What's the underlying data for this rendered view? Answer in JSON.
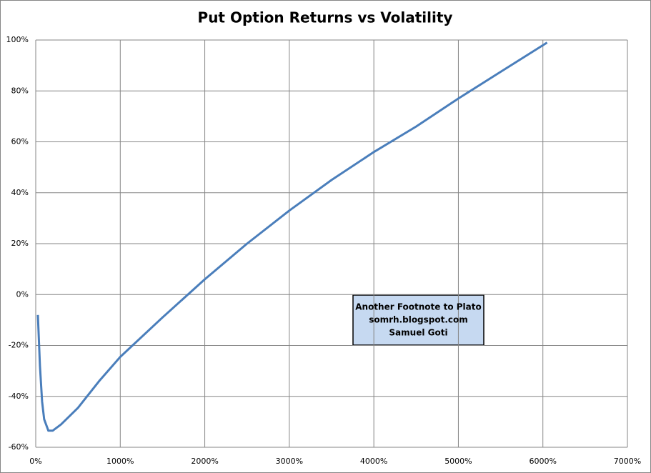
{
  "chart_data": {
    "type": "line",
    "title": "Put Option Returns vs Volatility",
    "x": [
      25,
      50,
      75,
      100,
      150,
      200,
      300,
      500,
      750,
      1000,
      1500,
      2000,
      2500,
      3000,
      3500,
      4000,
      4500,
      5000,
      5500,
      6050
    ],
    "values": [
      -8,
      -28,
      -42,
      -49,
      -53.5,
      -53.5,
      -51,
      -44.5,
      -34,
      -24.5,
      -9,
      6,
      20,
      33,
      45,
      56,
      66,
      77,
      87.5,
      99
    ],
    "color": "#4a7ebb",
    "xlim": [
      0,
      7000
    ],
    "xticks": [
      {
        "value": 0,
        "label": "0%"
      },
      {
        "value": 1000,
        "label": "1000%"
      },
      {
        "value": 2000,
        "label": "2000%"
      },
      {
        "value": 3000,
        "label": "3000%"
      },
      {
        "value": 4000,
        "label": "4000%"
      },
      {
        "value": 5000,
        "label": "5000%"
      },
      {
        "value": 6000,
        "label": "6000%"
      },
      {
        "value": 7000,
        "label": "7000%"
      }
    ],
    "ylim": [
      -60,
      100
    ],
    "yticks": [
      {
        "value": -60,
        "label": "-60%"
      },
      {
        "value": -40,
        "label": "-40%"
      },
      {
        "value": -20,
        "label": "-20%"
      },
      {
        "value": 0,
        "label": "0%"
      },
      {
        "value": 20,
        "label": "20%"
      },
      {
        "value": 40,
        "label": "40%"
      },
      {
        "value": 60,
        "label": "60%"
      },
      {
        "value": 80,
        "label": "80%"
      },
      {
        "value": 100,
        "label": "100%"
      }
    ],
    "grid": true,
    "annotation": [
      "Another Footnote to Plato",
      "somrh.blogspot.com",
      "Samuel Goti"
    ]
  }
}
